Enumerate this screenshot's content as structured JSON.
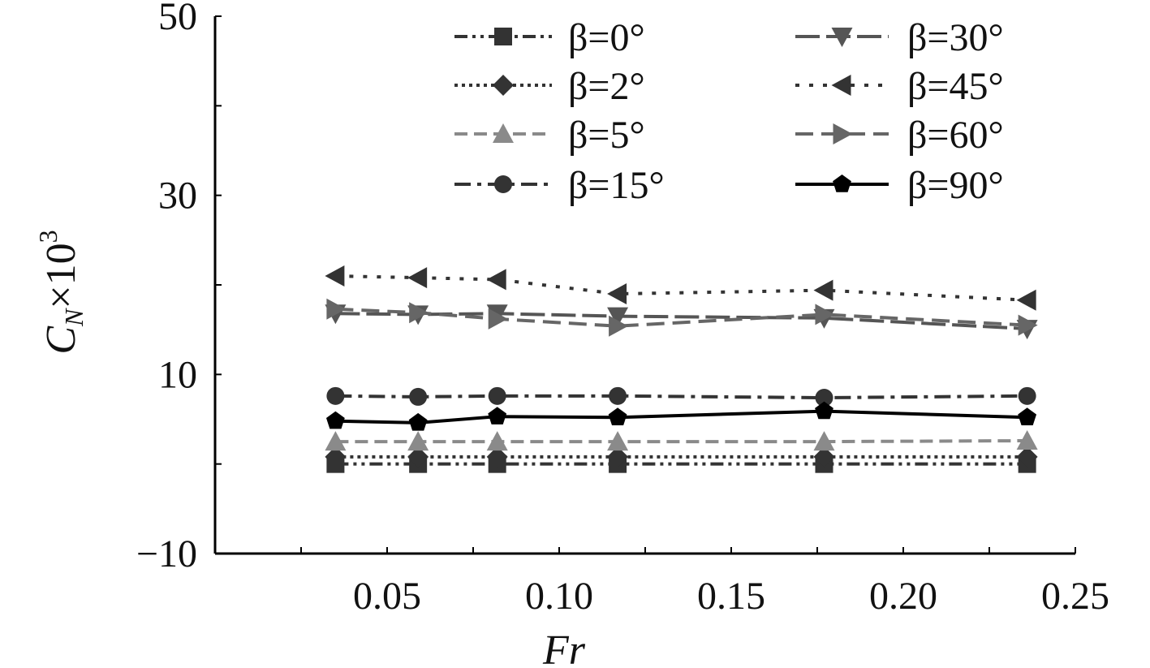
{
  "chart_data": {
    "type": "line",
    "title": "",
    "xlabel": "Fr",
    "ylabel": {
      "base": "C",
      "sub": "N",
      "rest": "×10",
      "sup": "3"
    },
    "xlim": [
      0,
      0.25
    ],
    "ylim": [
      -10,
      50
    ],
    "x_ticks": [
      "0.05",
      "0.10",
      "0.15",
      "0.20",
      "0.25"
    ],
    "y_ticks": [
      "−10",
      "10",
      "30",
      "50"
    ],
    "x": [
      0.035,
      0.059,
      0.082,
      0.117,
      0.177,
      0.236
    ],
    "legend_position": "top",
    "series": [
      {
        "name": "β=0°",
        "marker": "square",
        "dash": "dashdotdot",
        "color": "#333333",
        "values": [
          0.0,
          0.0,
          0.0,
          0.0,
          0.0,
          0.0
        ]
      },
      {
        "name": "β=2°",
        "marker": "diamond",
        "dash": "dotted",
        "color": "#333333",
        "values": [
          0.8,
          0.8,
          0.8,
          0.8,
          0.8,
          0.8
        ]
      },
      {
        "name": "β=5°",
        "marker": "triangle-up",
        "dash": "dashed",
        "color": "#8a8a8a",
        "values": [
          2.5,
          2.5,
          2.5,
          2.5,
          2.5,
          2.6
        ]
      },
      {
        "name": "β=15°",
        "marker": "circle",
        "dash": "dashdot",
        "color": "#333333",
        "values": [
          7.6,
          7.5,
          7.6,
          7.6,
          7.4,
          7.6
        ]
      },
      {
        "name": "β=30°",
        "marker": "triangle-down",
        "dash": "longdash",
        "color": "#555555",
        "values": [
          16.8,
          16.7,
          16.8,
          16.5,
          16.3,
          15.1
        ]
      },
      {
        "name": "β=45°",
        "marker": "triangle-left",
        "dash": "dotted-wide",
        "color": "#333333",
        "values": [
          21.0,
          20.8,
          20.6,
          19.0,
          19.4,
          18.3
        ]
      },
      {
        "name": "β=60°",
        "marker": "triangle-right",
        "dash": "dash",
        "color": "#666666",
        "values": [
          17.3,
          16.9,
          16.2,
          15.4,
          16.7,
          15.5
        ]
      },
      {
        "name": "β=90°",
        "marker": "pentagon",
        "dash": "solid",
        "color": "#000000",
        "values": [
          4.8,
          4.6,
          5.3,
          5.2,
          5.9,
          5.2
        ]
      }
    ]
  }
}
